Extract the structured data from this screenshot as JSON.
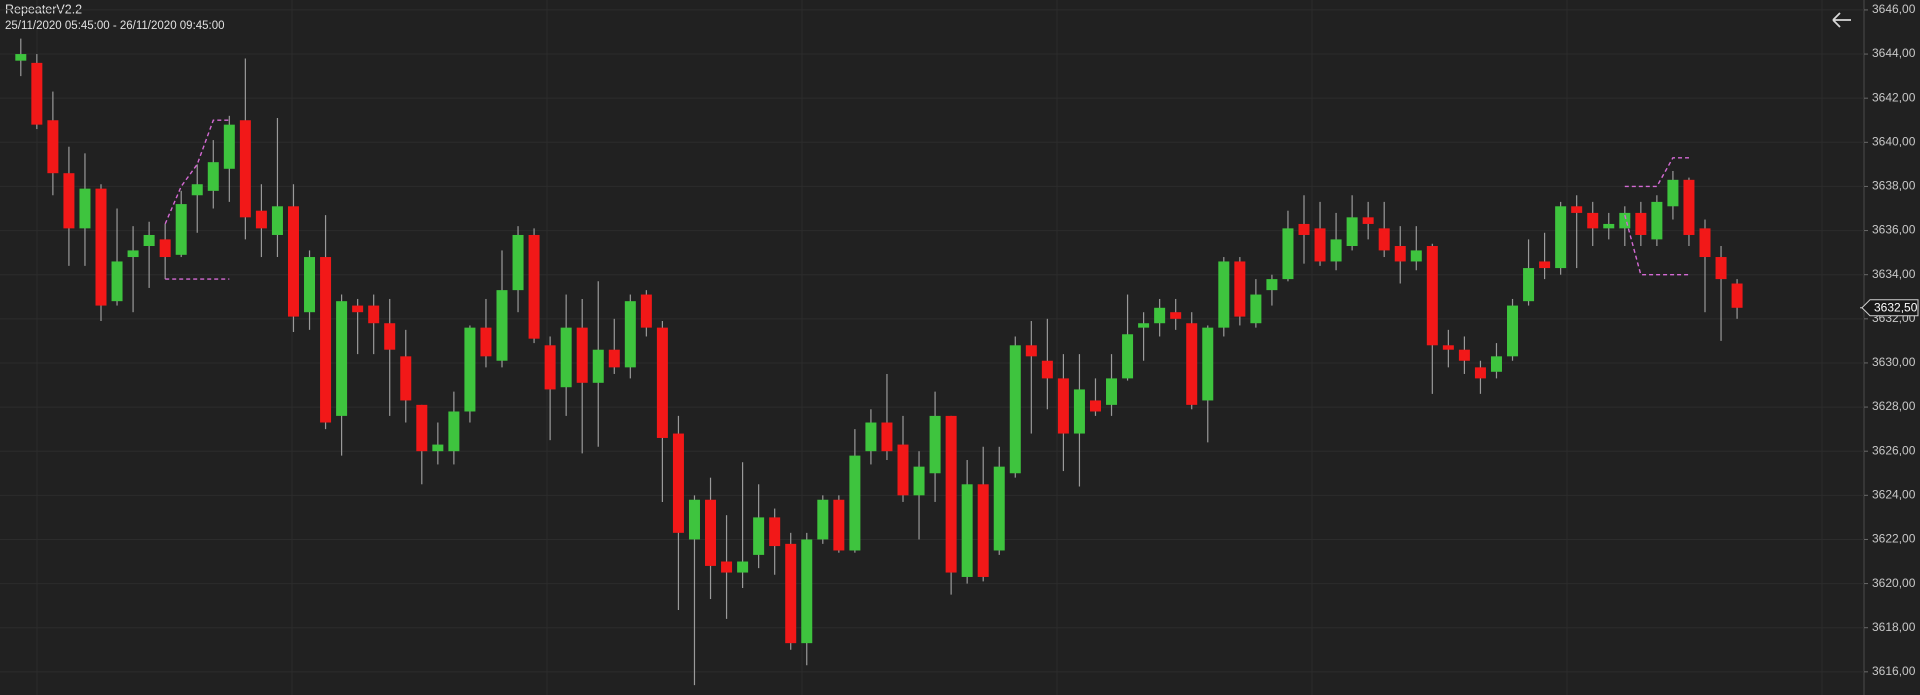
{
  "chart_data": {
    "type": "candlestick",
    "title": "RepeaterV2.2",
    "subtitle": "25/11/2020 05:45:00 - 26/11/2020 09:45:00",
    "up_color": "#3ec43e",
    "down_color": "#f21818",
    "wick_color": "#9a9a9a",
    "grid": true,
    "ylim": [
      3614.95,
      3646.45
    ],
    "yticks": [
      {
        "value": 3616,
        "label": "3616,00"
      },
      {
        "value": 3618,
        "label": "3618,00"
      },
      {
        "value": 3620,
        "label": "3620,00"
      },
      {
        "value": 3622,
        "label": "3622,00"
      },
      {
        "value": 3624,
        "label": "3624,00"
      },
      {
        "value": 3626,
        "label": "3626,00"
      },
      {
        "value": 3628,
        "label": "3628,00"
      },
      {
        "value": 3630,
        "label": "3630,00"
      },
      {
        "value": 3632,
        "label": "3632,00"
      },
      {
        "value": 3634,
        "label": "3634,00"
      },
      {
        "value": 3636,
        "label": "3636,00"
      },
      {
        "value": 3638,
        "label": "3638,00"
      },
      {
        "value": 3640,
        "label": "3640,00"
      },
      {
        "value": 3642,
        "label": "3642,00"
      },
      {
        "value": 3644,
        "label": "3644,00"
      },
      {
        "value": 3646,
        "label": "3646,00"
      }
    ],
    "last_price": {
      "value": 3632.5,
      "label": "3632,50"
    },
    "open": [
      3643.7,
      3643.6,
      3641,
      3638.6,
      3636.1,
      3637.9,
      3632.8,
      3634.8,
      3635.3,
      3635.6,
      3634.9,
      3637.6,
      3637.8,
      3638.8,
      3641,
      3636.9,
      3635.8,
      3637.1,
      3632.3,
      3634.8,
      3627.6,
      3632.6,
      3632.6,
      3631.8,
      3630.3,
      3628.1,
      3626,
      3626,
      3627.8,
      3631.6,
      3630.1,
      3633.3,
      3635.8,
      3630.8,
      3628.9,
      3631.6,
      3629.1,
      3630.6,
      3629.8,
      3633.1,
      3631.6,
      3626.8,
      3622,
      3623.8,
      3621,
      3620.5,
      3621.3,
      3623,
      3621.8,
      3617.3,
      3622,
      3623.8,
      3621.5,
      3626,
      3627.3,
      3626.3,
      3624,
      3625,
      3627.6,
      3620.3,
      3624.5,
      3621.5,
      3625,
      3630.8,
      3630.1,
      3629.3,
      3626.8,
      3628.3,
      3628.1,
      3629.3,
      3631.6,
      3631.8,
      3632.3,
      3631.8,
      3628.3,
      3631.6,
      3634.6,
      3631.8,
      3633.3,
      3633.8,
      3636.3,
      3636.1,
      3634.6,
      3635.3,
      3636.6,
      3636.1,
      3635.3,
      3634.6,
      3635.3,
      3630.8,
      3630.6,
      3629.8,
      3629.6,
      3630.3,
      3632.8,
      3634.6,
      3634.3,
      3637.1,
      3636.8,
      3636.1,
      3636.1,
      3636.8,
      3635.6,
      3637.1,
      3638.3,
      3636.1,
      3634.8,
      3633.6
    ],
    "high": [
      3644.7,
      3644,
      3642.3,
      3639.8,
      3639.5,
      3638.1,
      3637,
      3636.2,
      3636.4,
      3636.3,
      3637.8,
      3639,
      3640.1,
      3641.2,
      3643.8,
      3638.1,
      3641.1,
      3638.1,
      3635.1,
      3636.7,
      3633.1,
      3632.9,
      3633.1,
      3632.9,
      3631.5,
      3628.1,
      3627.3,
      3628.7,
      3631.7,
      3632.9,
      3635.1,
      3636.2,
      3636.1,
      3631.2,
      3633.1,
      3632.9,
      3633.7,
      3632,
      3633.1,
      3633.3,
      3631.9,
      3627.6,
      3624,
      3624.8,
      3623.1,
      3625.5,
      3624.5,
      3623.4,
      3622.3,
      3622.3,
      3624,
      3624,
      3627,
      3627.9,
      3629.5,
      3627.6,
      3626,
      3628.7,
      3627.6,
      3625.6,
      3626.2,
      3626.2,
      3631.2,
      3631.9,
      3632,
      3630.4,
      3630.4,
      3629.3,
      3630.4,
      3633.1,
      3632.3,
      3632.9,
      3632.9,
      3632.3,
      3631.7,
      3634.8,
      3634.8,
      3633.8,
      3634,
      3636.9,
      3637.6,
      3637.3,
      3636.8,
      3637.6,
      3637.3,
      3637.3,
      3636.2,
      3636.2,
      3635.4,
      3631.5,
      3631.2,
      3630.1,
      3630.9,
      3632.9,
      3635.6,
      3635.9,
      3637.3,
      3637.6,
      3637.3,
      3636.8,
      3637.1,
      3637.3,
      3637.6,
      3638.7,
      3638.4,
      3636.5,
      3635.3,
      3633.8
    ],
    "low": [
      3643,
      3640.6,
      3637.6,
      3634.4,
      3634.4,
      3631.9,
      3632.6,
      3632.3,
      3633.4,
      3633.8,
      3634.8,
      3635.9,
      3637,
      3637.3,
      3635.6,
      3634.8,
      3634.8,
      3631.4,
      3631.5,
      3627,
      3625.8,
      3630.4,
      3630.4,
      3627.6,
      3627.3,
      3624.5,
      3625.4,
      3625.4,
      3627.3,
      3629.8,
      3629.8,
      3632.3,
      3630.9,
      3626.5,
      3627.6,
      3625.9,
      3626.2,
      3629.5,
      3629.3,
      3631.2,
      3623.7,
      3618.8,
      3615.4,
      3619.3,
      3618.4,
      3619.8,
      3620.7,
      3620.4,
      3617,
      3616.3,
      3621.8,
      3621.4,
      3621.4,
      3625.4,
      3625.6,
      3623.7,
      3622,
      3623.7,
      3619.5,
      3620,
      3620.1,
      3621.3,
      3624.8,
      3626.8,
      3627.9,
      3625.1,
      3624.4,
      3627.6,
      3627.6,
      3629.2,
      3630.1,
      3631.2,
      3631.5,
      3627.9,
      3626.4,
      3631.2,
      3631.7,
      3631.6,
      3632.6,
      3633.7,
      3634.5,
      3634.4,
      3634.2,
      3635.1,
      3635.6,
      3634.8,
      3633.6,
      3634.2,
      3628.6,
      3629.8,
      3629.5,
      3628.6,
      3629.3,
      3630.1,
      3632.6,
      3633.8,
      3634,
      3634.3,
      3635.3,
      3635.6,
      3635.3,
      3635.3,
      3635.3,
      3636.5,
      3635.3,
      3632.3,
      3631,
      3632
    ],
    "close": [
      3644,
      3640.8,
      3638.6,
      3636.1,
      3637.9,
      3632.6,
      3634.6,
      3635.1,
      3635.8,
      3634.8,
      3637.2,
      3638.1,
      3639.1,
      3640.8,
      3636.6,
      3636.1,
      3637.1,
      3632.1,
      3634.8,
      3627.3,
      3632.8,
      3632.3,
      3631.8,
      3630.6,
      3628.3,
      3626,
      3626.3,
      3627.8,
      3631.6,
      3630.3,
      3633.3,
      3635.8,
      3631.1,
      3628.8,
      3631.6,
      3629.1,
      3630.6,
      3629.8,
      3632.8,
      3631.6,
      3626.6,
      3622.3,
      3623.8,
      3620.8,
      3620.5,
      3621,
      3623,
      3621.7,
      3617.3,
      3622,
      3623.8,
      3621.5,
      3625.8,
      3627.3,
      3626,
      3624,
      3625.3,
      3627.6,
      3620.5,
      3624.5,
      3620.3,
      3625.3,
      3630.8,
      3630.3,
      3629.3,
      3626.8,
      3628.8,
      3627.8,
      3629.3,
      3631.3,
      3631.8,
      3632.5,
      3632,
      3628.1,
      3631.6,
      3634.6,
      3632.1,
      3633.1,
      3633.8,
      3636.1,
      3635.8,
      3634.6,
      3635.6,
      3636.6,
      3636.3,
      3635.1,
      3634.6,
      3635.1,
      3630.8,
      3630.6,
      3630.1,
      3629.3,
      3630.3,
      3632.6,
      3634.3,
      3634.3,
      3637.1,
      3636.8,
      3636.1,
      3636.3,
      3636.8,
      3635.8,
      3637.3,
      3638.3,
      3635.8,
      3634.8,
      3633.8,
      3632.5
    ],
    "overlays": [
      {
        "color": "#d46ad4",
        "values": [
          null,
          null,
          null,
          null,
          null,
          null,
          null,
          null,
          null,
          3636.3,
          3638,
          3639,
          3641,
          3641,
          null,
          null,
          null,
          null,
          null,
          null,
          null,
          null,
          null,
          null,
          null,
          null,
          null,
          null,
          null,
          null,
          null,
          null,
          null,
          null,
          null,
          null,
          null,
          null,
          null,
          null,
          null,
          null,
          null,
          null,
          null,
          null,
          null,
          null,
          null,
          null,
          null,
          null,
          null,
          null,
          null,
          null,
          null,
          null,
          null,
          null,
          null,
          null,
          null,
          null,
          null,
          null,
          null,
          null,
          null,
          null,
          null,
          null,
          null,
          null,
          null,
          null,
          null,
          null,
          null,
          null,
          null,
          null,
          null,
          null,
          null,
          null,
          null,
          null,
          null,
          null,
          null,
          null,
          null,
          null,
          null,
          null,
          null,
          null,
          null,
          null,
          3638,
          3638,
          3638,
          3639.3,
          3639.3,
          null,
          null,
          null
        ]
      },
      {
        "color": "#d46ad4",
        "values": [
          null,
          null,
          null,
          null,
          null,
          null,
          null,
          null,
          null,
          3633.8,
          3633.8,
          3633.8,
          3633.8,
          3633.8,
          null,
          null,
          null,
          null,
          null,
          null,
          null,
          null,
          null,
          null,
          null,
          null,
          null,
          null,
          null,
          null,
          null,
          null,
          null,
          null,
          null,
          null,
          null,
          null,
          null,
          null,
          null,
          null,
          null,
          null,
          null,
          null,
          null,
          null,
          null,
          null,
          null,
          null,
          null,
          null,
          null,
          null,
          null,
          null,
          null,
          null,
          null,
          null,
          null,
          null,
          null,
          null,
          null,
          null,
          null,
          null,
          null,
          null,
          null,
          null,
          null,
          null,
          null,
          null,
          null,
          null,
          null,
          null,
          null,
          null,
          null,
          null,
          null,
          null,
          null,
          null,
          null,
          null,
          null,
          null,
          null,
          null,
          null,
          null,
          null,
          null,
          3636.7,
          3634,
          3634,
          3634,
          3634,
          null,
          null,
          null
        ]
      }
    ]
  }
}
